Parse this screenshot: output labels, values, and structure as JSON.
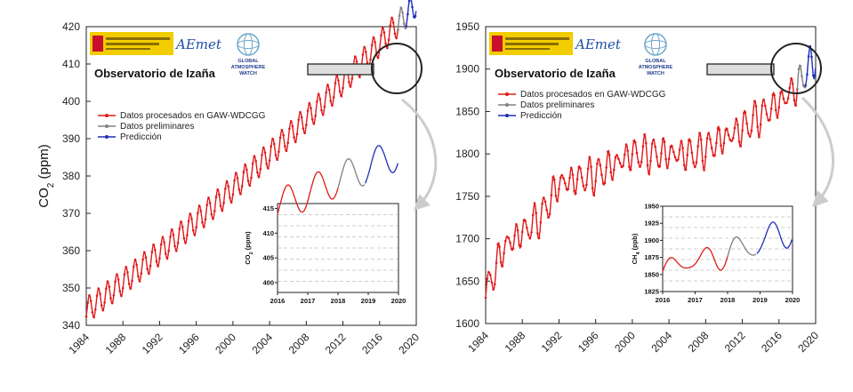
{
  "colors": {
    "processed": "#e01a1a",
    "preliminary": "#808080",
    "prediction": "#1f2fb8",
    "grid": "#999999",
    "logo_yellow": "#f2cd00",
    "logo_red": "#c8102e"
  },
  "logos": {
    "aemet": "AEmet",
    "gaw_line1": "GLOBAL",
    "gaw_line2": "ATMOSPHERE",
    "gaw_line3": "WATCH",
    "gov_icon": "spain-government-logo-icon",
    "globe_icon": "gaw-globe-icon",
    "magnifier_icon": "magnifier-icon",
    "arrow_icon": "curved-arrow-icon"
  },
  "chart_data": [
    {
      "type": "line",
      "id": "co2",
      "title": "Observatorio de Izaña",
      "xlabel": "",
      "ylabel": "CO2 (ppm)",
      "ylabel_main": "CO",
      "ylabel_sub": "2",
      "ylabel_unit": " (ppm)",
      "xlim": [
        1984,
        2020
      ],
      "ylim": [
        340,
        420
      ],
      "x_ticks": [
        "1984",
        "1988",
        "1992",
        "1996",
        "2000",
        "2004",
        "2008",
        "2012",
        "2016",
        "2020"
      ],
      "y_ticks": [
        "340",
        "350",
        "360",
        "370",
        "380",
        "390",
        "400",
        "410",
        "420"
      ],
      "legend": [
        "Datos procesados en GAW-WDCGG",
        "Datos preliminares",
        "Predicción"
      ],
      "series": [
        {
          "name": "Datos procesados en GAW-WDCGG",
          "x_range": [
            1984.0,
            2018.0
          ],
          "trend_start": 344.0,
          "trend_rate": 1.85,
          "trend_accel": 0.012,
          "amplitude": 3.4
        },
        {
          "name": "Datos preliminares",
          "x_range": [
            2018.0,
            2018.9
          ],
          "trend_start": 344.0,
          "trend_rate": 1.85,
          "trend_accel": 0.012,
          "amplitude": 3.4
        },
        {
          "name": "Predicción",
          "x_range": [
            2018.9,
            2020.0
          ],
          "trend_start": 344.0,
          "trend_rate": 1.85,
          "trend_accel": 0.012,
          "amplitude": 3.4
        }
      ],
      "inset": {
        "xlim": [
          2016,
          2020
        ],
        "ylim": [
          398,
          416
        ],
        "x_ticks": [
          "2016",
          "2017",
          "2018",
          "2019",
          "2020"
        ],
        "y_ticks": [
          "400",
          "405",
          "410",
          "415"
        ],
        "ylabel": "CO2 (ppm)",
        "ylabel_main": "CO",
        "ylabel_sub": "2",
        "ylabel_unit": " (ppm)"
      }
    },
    {
      "type": "line",
      "id": "ch4",
      "title": "Observatorio de Izaña",
      "xlabel": "",
      "ylabel": "",
      "xlim": [
        1984,
        2020
      ],
      "ylim": [
        1600,
        1950
      ],
      "x_ticks": [
        "1984",
        "1988",
        "1992",
        "1996",
        "2000",
        "2004",
        "2008",
        "2012",
        "2016",
        "2020"
      ],
      "y_ticks": [
        "1600",
        "1650",
        "1700",
        "1750",
        "1800",
        "1850",
        "1900",
        "1950"
      ],
      "legend": [
        "Datos procesados en GAW-WDCGG",
        "Datos preliminares",
        "Predicción"
      ],
      "series": [
        {
          "name": "Datos procesados en GAW-WDCGG",
          "x_range": [
            1984.0,
            2018.0
          ],
          "key_years": [
            1984.0,
            1986.0,
            1990.0,
            1992.0,
            1996.0,
            2000.0,
            2007.0,
            2012.0,
            2016.0,
            2018.0,
            2020.0
          ],
          "key_values": [
            1635,
            1690,
            1725,
            1765,
            1775,
            1800,
            1800,
            1830,
            1860,
            1880,
            1915
          ],
          "amplitude": 16
        },
        {
          "name": "Datos preliminares",
          "x_range": [
            2018.0,
            2018.9
          ],
          "key_years": [
            1984.0,
            1986.0,
            1990.0,
            1992.0,
            1996.0,
            2000.0,
            2007.0,
            2012.0,
            2016.0,
            2018.0,
            2020.0
          ],
          "key_values": [
            1635,
            1690,
            1725,
            1765,
            1775,
            1800,
            1800,
            1830,
            1860,
            1880,
            1915
          ],
          "amplitude": 16
        },
        {
          "name": "Predicción",
          "x_range": [
            2018.9,
            2020.0
          ],
          "key_years": [
            1984.0,
            1986.0,
            1990.0,
            1992.0,
            1996.0,
            2000.0,
            2007.0,
            2012.0,
            2016.0,
            2018.0,
            2020.0
          ],
          "key_values": [
            1635,
            1690,
            1725,
            1765,
            1775,
            1800,
            1800,
            1830,
            1860,
            1880,
            1915
          ],
          "amplitude": 16
        }
      ],
      "inset": {
        "xlim": [
          2016,
          2020
        ],
        "ylim": [
          1825,
          1950
        ],
        "x_ticks": [
          "2016",
          "2017",
          "2018",
          "2019",
          "2020"
        ],
        "y_ticks": [
          "1825",
          "1850",
          "1875",
          "1900",
          "1925",
          "1950"
        ],
        "ylabel": "CH4 (ppb)",
        "ylabel_main": "CH",
        "ylabel_sub": "4",
        "ylabel_unit": " (ppb)"
      }
    }
  ]
}
